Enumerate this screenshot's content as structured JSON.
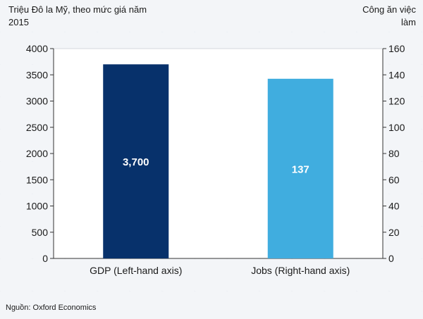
{
  "chart_data": {
    "type": "bar",
    "categories": [
      "GDP (Left-hand axis)",
      "Jobs (Right-hand axis)"
    ],
    "values": [
      3700,
      137
    ],
    "axis": [
      "left",
      "right"
    ],
    "data_labels": [
      "3,700",
      "137"
    ],
    "left_axis_title": "Triệu Đô la Mỹ, theo mức giá năm 2015",
    "right_axis_title": "Công ăn việc làm",
    "left_ylim": [
      0,
      4000
    ],
    "left_ticks": [
      0,
      500,
      1000,
      1500,
      2000,
      2500,
      3000,
      3500,
      4000
    ],
    "right_ylim": [
      0,
      160
    ],
    "right_ticks": [
      0,
      20,
      40,
      60,
      80,
      100,
      120,
      140,
      160
    ],
    "grid": false,
    "legend": "none",
    "colors": [
      "#07316b",
      "#40addf"
    ]
  },
  "source_note": "Nguồn: Oxford Economics"
}
